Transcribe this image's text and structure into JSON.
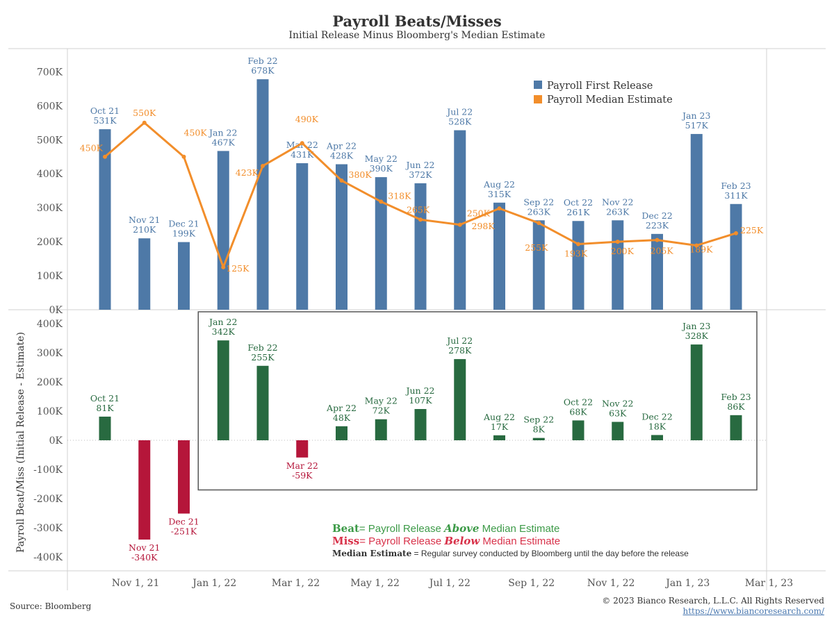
{
  "header": {
    "title": "Payroll Beats/Misses",
    "subtitle": "Initial Release Minus Bloomberg's Median Estimate"
  },
  "footer": {
    "source": "Source: Bloomberg",
    "copyright": "© 2023 Bianco Research, L.L.C. All Rights Reserved",
    "link": "https://www.biancoresearch.com/"
  },
  "notes": {
    "beat_word": "Beat",
    "beat_pre": "= Payroll Release ",
    "beat_em": "Above",
    "beat_post": " Median Estimate",
    "miss_word": "Miss",
    "miss_pre": "= Payroll Release ",
    "miss_em": "Below",
    "miss_post": " Median Estimate",
    "median_word": "Median Estimate",
    "median_text": " = Regular survey conducted by Bloomberg until the day before the release"
  },
  "colors": {
    "release": "#4e79a7",
    "median": "#f28e2b",
    "beat": "#286a40",
    "miss": "#b5163a",
    "beat_note": "#3c9a47",
    "miss_note": "#d8324a",
    "axis_text": "#555555"
  },
  "chart_data": [
    {
      "type": "bar",
      "name": "top",
      "months": [
        "Oct 21",
        "Nov 21",
        "Dec 21",
        "Jan 22",
        "Feb 22",
        "Mar 22",
        "Apr 22",
        "May 22",
        "Jun 22",
        "Jul 22",
        "Aug 22",
        "Sep 22",
        "Oct 22",
        "Nov 22",
        "Dec 22",
        "Jan 23",
        "Feb 23"
      ],
      "series": [
        {
          "name": "Payroll First Release",
          "kind": "bar",
          "values": [
            531,
            210,
            199,
            467,
            678,
            431,
            428,
            390,
            372,
            528,
            315,
            263,
            261,
            263,
            223,
            517,
            311
          ]
        },
        {
          "name": "Payroll Median Estimate",
          "kind": "line",
          "values": [
            450,
            550,
            450,
            125,
            423,
            490,
            380,
            318,
            265,
            250,
            298,
            255,
            193,
            200,
            205,
            189,
            225
          ]
        }
      ],
      "bar_labels": [
        "531K",
        "210K",
        "199K",
        "467K",
        "678K",
        "431K",
        "428K",
        "390K",
        "372K",
        "528K",
        "315K",
        "263K",
        "261K",
        "263K",
        "223K",
        "517K",
        "311K"
      ],
      "line_labels": [
        "450K",
        "550K",
        "450K",
        "125K",
        "423K",
        "490K",
        "380K",
        "318K",
        "265K",
        "250K",
        "298K",
        "255K",
        "193K",
        "200K",
        "205K",
        "189K",
        "225K"
      ],
      "ylim": [
        0,
        720
      ],
      "y_ticks": [
        {
          "v": 0,
          "label": "0K"
        },
        {
          "v": 100,
          "label": "100K"
        },
        {
          "v": 200,
          "label": "200K"
        },
        {
          "v": 300,
          "label": "300K"
        },
        {
          "v": 400,
          "label": "400K"
        },
        {
          "v": 500,
          "label": "500K"
        },
        {
          "v": 600,
          "label": "600K"
        },
        {
          "v": 700,
          "label": "700K"
        }
      ],
      "legend_position": "top-right"
    },
    {
      "type": "bar",
      "name": "bottom",
      "months": [
        "Oct 21",
        "Nov 21",
        "Dec 21",
        "Jan 22",
        "Feb 22",
        "Mar 22",
        "Apr 22",
        "May 22",
        "Jun 22",
        "Jul 22",
        "Aug 22",
        "Sep 22",
        "Oct 22",
        "Nov 22",
        "Dec 22",
        "Jan 23",
        "Feb 23"
      ],
      "values": [
        81,
        -340,
        -251,
        342,
        255,
        -59,
        48,
        72,
        107,
        278,
        17,
        8,
        68,
        63,
        18,
        328,
        86
      ],
      "value_labels": [
        "81K",
        "-340K",
        "-251K",
        "342K",
        "255K",
        "-59K",
        "48K",
        "72K",
        "107K",
        "278K",
        "17K",
        "8K",
        "68K",
        "63K",
        "18K",
        "328K",
        "86K"
      ],
      "ylabel": "Payroll Beat/Miss (Initial Release - Estimate)",
      "ylim": [
        -420,
        420
      ],
      "y_ticks": [
        {
          "v": 400,
          "label": "400K"
        },
        {
          "v": 300,
          "label": "300K"
        },
        {
          "v": 200,
          "label": "200K"
        },
        {
          "v": 100,
          "label": "100K"
        },
        {
          "v": 0,
          "label": "0K"
        },
        {
          "v": -100,
          "label": "-100K"
        },
        {
          "v": -200,
          "label": "-200K"
        },
        {
          "v": -300,
          "label": "-300K"
        },
        {
          "v": -400,
          "label": "-400K"
        }
      ],
      "x_ticks": [
        "Nov 1, 21",
        "Jan 1, 22",
        "Mar 1, 22",
        "May 1, 22",
        "Jul 1, 22",
        "Sep 1, 22",
        "Nov 1, 22",
        "Jan 1, 23",
        "Mar 1, 23"
      ],
      "highlight_box": {
        "from": "Jan 22",
        "to": "Feb 23",
        "y_top": 440,
        "y_bottom": -170
      }
    }
  ]
}
